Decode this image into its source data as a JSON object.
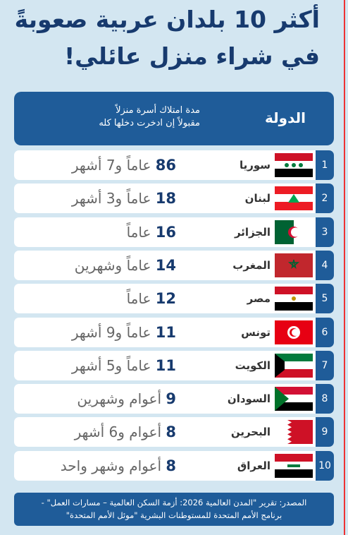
{
  "header": {
    "title_lines": [
      "أكثر 10 بلدان عربية صعوبةً",
      "في شراء منزل عائلي!"
    ]
  },
  "table": {
    "columns": {
      "country": "الدولة",
      "duration_lines": [
        "مدة امتلاك أسرة منزلاً",
        "مقبولاً إن ادخرت دخلها كله"
      ]
    },
    "rows": [
      {
        "rank": 1,
        "country": "سوريا",
        "years": 86,
        "rest": "عاماً و7 أشهر"
      },
      {
        "rank": 2,
        "country": "لبنان",
        "years": 18,
        "rest": "عاماً و3 أشهر"
      },
      {
        "rank": 3,
        "country": "الجزائر",
        "years": 16,
        "rest": "عاماً"
      },
      {
        "rank": 4,
        "country": "المغرب",
        "years": 14,
        "rest": "عاماً وشهرين"
      },
      {
        "rank": 5,
        "country": "مصر",
        "years": 12,
        "rest": "عاماً"
      },
      {
        "rank": 6,
        "country": "تونس",
        "years": 11,
        "rest": "عاماً و9 أشهر"
      },
      {
        "rank": 7,
        "country": "الكويت",
        "years": 11,
        "rest": "عاماً و5 أشهر"
      },
      {
        "rank": 8,
        "country": "السودان",
        "years": 9,
        "rest": "أعوام وشهرين"
      },
      {
        "rank": 9,
        "country": "البحرين",
        "years": 8,
        "rest": "أعوام و6 أشهر"
      },
      {
        "rank": 10,
        "country": "العراق",
        "years": 8,
        "rest": "أعوام وشهر واحد"
      }
    ]
  },
  "footer": {
    "source_lines": [
      "المصدر: تقرير \"المدن العالمية 2026: أزمة السكن العالمية – مسارات العمل\" -",
      "برنامج الأمم المتحدة للمستوطنات البشرية \"موئل الأمم المتحدة\""
    ]
  }
}
